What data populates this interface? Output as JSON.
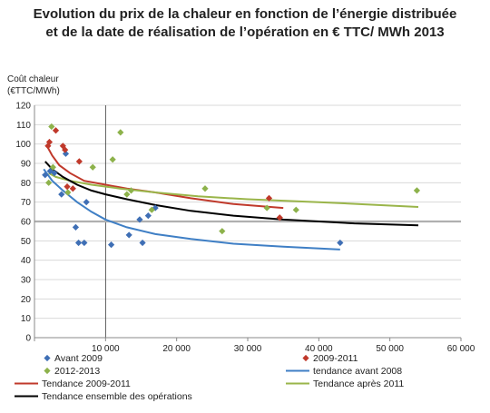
{
  "title": {
    "line1": "Evolution du prix de la chaleur en fonction de l’énergie distribuée",
    "line2": "et de la date de réalisation de l’opération en € TTC/ MWh 2013"
  },
  "chart_data": {
    "type": "scatter",
    "ylabel_line1": "Coût chaleur",
    "ylabel_line2": "(€TTC/MWh)",
    "xlabel": "",
    "xlim": [
      0,
      60000
    ],
    "ylim": [
      0,
      120
    ],
    "x_ticks": [
      {
        "value": 0,
        "label": ""
      },
      {
        "value": 10000,
        "label": "10 000"
      },
      {
        "value": 20000,
        "label": "20 000"
      },
      {
        "value": 30000,
        "label": "30 000"
      },
      {
        "value": 40000,
        "label": "40 000"
      },
      {
        "value": 50000,
        "label": "50 000"
      },
      {
        "value": 60000,
        "label": "60 000"
      }
    ],
    "y_ticks": [
      0,
      10,
      20,
      30,
      40,
      50,
      60,
      70,
      80,
      90,
      100,
      110,
      120
    ],
    "grid": "horizontal",
    "reference_lines": [
      {
        "axis": "x",
        "value": 10000,
        "color": "#333333"
      },
      {
        "axis": "y",
        "value": 60,
        "color": "#b0b0b0"
      }
    ],
    "series": [
      {
        "name": "Avant 2009",
        "kind": "points",
        "color": "#3f6fb5",
        "points": [
          [
            1500,
            84
          ],
          [
            2200,
            86
          ],
          [
            2800,
            85
          ],
          [
            3800,
            74
          ],
          [
            4400,
            95
          ],
          [
            5800,
            57
          ],
          [
            6200,
            49
          ],
          [
            7000,
            49
          ],
          [
            7300,
            70
          ],
          [
            10800,
            48
          ],
          [
            13300,
            53
          ],
          [
            14800,
            61
          ],
          [
            15200,
            49
          ],
          [
            16000,
            63
          ],
          [
            17000,
            67
          ],
          [
            43000,
            49
          ]
        ]
      },
      {
        "name": "2009-2011",
        "kind": "points",
        "color": "#c0392b",
        "points": [
          [
            1900,
            99
          ],
          [
            2100,
            101
          ],
          [
            3000,
            107
          ],
          [
            4000,
            99
          ],
          [
            4300,
            97
          ],
          [
            4600,
            78
          ],
          [
            5400,
            77
          ],
          [
            6300,
            91
          ],
          [
            33000,
            72
          ],
          [
            34500,
            62
          ]
        ]
      },
      {
        "name": "2012-2013",
        "kind": "points",
        "color": "#8db24b",
        "points": [
          [
            2400,
            109
          ],
          [
            2000,
            80
          ],
          [
            2600,
            88
          ],
          [
            4700,
            75
          ],
          [
            8200,
            88
          ],
          [
            11000,
            92
          ],
          [
            12100,
            106
          ],
          [
            13000,
            74
          ],
          [
            13600,
            76
          ],
          [
            24000,
            77
          ],
          [
            26400,
            55
          ],
          [
            32700,
            67
          ],
          [
            36800,
            66
          ],
          [
            53800,
            76
          ],
          [
            16500,
            66
          ]
        ]
      },
      {
        "name": "tendance avant 2008",
        "kind": "line",
        "color": "#3f7fc5",
        "points": [
          [
            1300,
            87
          ],
          [
            2500,
            81
          ],
          [
            4000,
            76
          ],
          [
            6000,
            70
          ],
          [
            8000,
            65
          ],
          [
            10000,
            61
          ],
          [
            13000,
            57
          ],
          [
            17000,
            53.5
          ],
          [
            22000,
            51
          ],
          [
            28000,
            48.5
          ],
          [
            35000,
            47
          ],
          [
            43000,
            45.5
          ]
        ]
      },
      {
        "name": "Tendance 2009-2011",
        "kind": "line",
        "color": "#c0392b",
        "points": [
          [
            1900,
            98
          ],
          [
            2500,
            94
          ],
          [
            3500,
            89
          ],
          [
            5000,
            85
          ],
          [
            7000,
            81
          ],
          [
            10000,
            79
          ],
          [
            13000,
            77
          ],
          [
            17000,
            75
          ],
          [
            22000,
            72
          ],
          [
            28000,
            69
          ],
          [
            35000,
            67
          ]
        ]
      },
      {
        "name": "Tendance après 2011",
        "kind": "line",
        "color": "#9ab54a",
        "points": [
          [
            2000,
            85
          ],
          [
            3000,
            83
          ],
          [
            5000,
            81
          ],
          [
            8000,
            79
          ],
          [
            12000,
            77
          ],
          [
            17000,
            75
          ],
          [
            23000,
            73
          ],
          [
            30000,
            71.5
          ],
          [
            40000,
            70
          ],
          [
            54000,
            67.5
          ]
        ]
      },
      {
        "name": "Tendance ensemble des opérations",
        "kind": "line",
        "color": "#000000",
        "points": [
          [
            1500,
            91
          ],
          [
            2500,
            87
          ],
          [
            4000,
            83
          ],
          [
            6000,
            79
          ],
          [
            8000,
            76
          ],
          [
            10000,
            74
          ],
          [
            13000,
            71.5
          ],
          [
            17000,
            68.5
          ],
          [
            22000,
            65.5
          ],
          [
            28000,
            63
          ],
          [
            35000,
            61
          ],
          [
            45000,
            59
          ],
          [
            54000,
            58
          ]
        ]
      }
    ],
    "legend": {
      "placement": "bottom",
      "entries": [
        {
          "label": "Avant 2009",
          "marker": "diamond",
          "color": "#3f6fb5"
        },
        {
          "label": "2009-2011",
          "marker": "diamond",
          "color": "#c0392b"
        },
        {
          "label": "2012-2013",
          "marker": "diamond",
          "color": "#8db24b"
        },
        {
          "label": "tendance avant 2008",
          "marker": "line",
          "color": "#3f7fc5"
        },
        {
          "label": "Tendance 2009-2011",
          "marker": "line",
          "color": "#c0392b"
        },
        {
          "label": "Tendance après 2011",
          "marker": "line",
          "color": "#9ab54a"
        },
        {
          "label": "Tendance ensemble des opérations",
          "marker": "line",
          "color": "#000000"
        }
      ]
    }
  }
}
